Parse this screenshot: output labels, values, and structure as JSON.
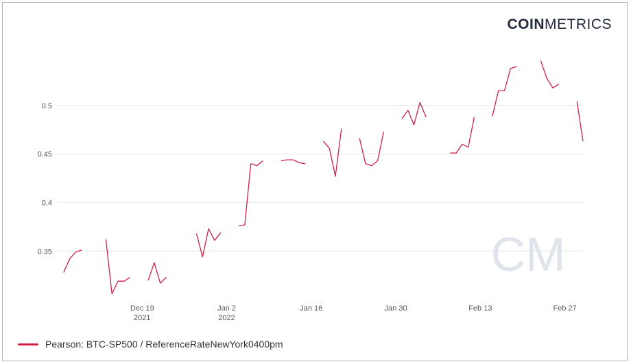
{
  "brand": {
    "logo_bold": "COIN",
    "logo_light": "METRICS",
    "watermark": "CM"
  },
  "colors": {
    "series": "#d21f45",
    "grid": "#e6e6e6",
    "watermark": "#dfe3ea"
  },
  "legend": {
    "label": "Pearson: BTC-SP500 / ReferenceRateNewYork0400pm"
  },
  "chart_data": {
    "type": "line",
    "title": "",
    "xlabel": "",
    "ylabel": "",
    "grid": true,
    "legend_position": "bottom-left",
    "ylim": [
      0.305,
      0.545
    ],
    "xlim": [
      "2021-12-05",
      "2022-03-02"
    ],
    "y_ticks": [
      0.35,
      0.4,
      0.45,
      0.5
    ],
    "x_ticks": [
      {
        "date": "2021-12-19",
        "label": "Dec 19",
        "sublabel": "2021"
      },
      {
        "date": "2022-01-02",
        "label": "Jan 2",
        "sublabel": "2022"
      },
      {
        "date": "2022-01-16",
        "label": "Jan 16",
        "sublabel": ""
      },
      {
        "date": "2022-01-30",
        "label": "Jan 30",
        "sublabel": ""
      },
      {
        "date": "2022-02-13",
        "label": "Feb 13",
        "sublabel": ""
      },
      {
        "date": "2022-02-27",
        "label": "Feb 27",
        "sublabel": ""
      }
    ],
    "series": [
      {
        "name": "Pearson: BTC-SP500 / ReferenceRateNewYork0400pm",
        "segments": [
          [
            [
              "2021-12-06",
              0.328
            ],
            [
              "2021-12-07",
              0.342
            ],
            [
              "2021-12-08",
              0.349
            ],
            [
              "2021-12-09",
              0.351
            ]
          ],
          [
            [
              "2021-12-13",
              0.362
            ],
            [
              "2021-12-14",
              0.306
            ],
            [
              "2021-12-15",
              0.319
            ],
            [
              "2021-12-16",
              0.319
            ],
            [
              "2021-12-17",
              0.323
            ]
          ],
          [
            [
              "2021-12-20",
              0.32
            ],
            [
              "2021-12-21",
              0.338
            ],
            [
              "2021-12-22",
              0.317
            ],
            [
              "2021-12-23",
              0.323
            ]
          ],
          [
            [
              "2021-12-28",
              0.368
            ],
            [
              "2021-12-29",
              0.344
            ],
            [
              "2021-12-30",
              0.373
            ],
            [
              "2021-12-31",
              0.361
            ],
            [
              "2022-01-01",
              0.369
            ]
          ],
          [
            [
              "2022-01-04",
              0.376
            ],
            [
              "2022-01-05",
              0.377
            ],
            [
              "2022-01-06",
              0.44
            ],
            [
              "2022-01-07",
              0.438
            ],
            [
              "2022-01-08",
              0.443
            ]
          ],
          [
            [
              "2022-01-11",
              0.443
            ],
            [
              "2022-01-12",
              0.444
            ],
            [
              "2022-01-13",
              0.444
            ],
            [
              "2022-01-14",
              0.441
            ],
            [
              "2022-01-15",
              0.44
            ]
          ],
          [
            [
              "2022-01-18",
              0.463
            ],
            [
              "2022-01-19",
              0.456
            ],
            [
              "2022-01-20",
              0.427
            ],
            [
              "2022-01-21",
              0.476
            ]
          ],
          [
            [
              "2022-01-24",
              0.466
            ],
            [
              "2022-01-25",
              0.44
            ],
            [
              "2022-01-26",
              0.438
            ],
            [
              "2022-01-27",
              0.443
            ],
            [
              "2022-01-28",
              0.473
            ]
          ],
          [
            [
              "2022-01-31",
              0.486
            ],
            [
              "2022-02-01",
              0.495
            ],
            [
              "2022-02-02",
              0.48
            ],
            [
              "2022-02-03",
              0.503
            ],
            [
              "2022-02-04",
              0.488
            ]
          ],
          [
            [
              "2022-02-08",
              0.451
            ],
            [
              "2022-02-09",
              0.451
            ],
            [
              "2022-02-10",
              0.46
            ],
            [
              "2022-02-11",
              0.457
            ],
            [
              "2022-02-12",
              0.488
            ]
          ],
          [
            [
              "2022-02-15",
              0.489
            ],
            [
              "2022-02-16",
              0.515
            ],
            [
              "2022-02-17",
              0.515
            ],
            [
              "2022-02-18",
              0.538
            ],
            [
              "2022-02-19",
              0.54
            ]
          ],
          [
            [
              "2022-02-23",
              0.546
            ],
            [
              "2022-02-24",
              0.528
            ],
            [
              "2022-02-25",
              0.518
            ],
            [
              "2022-02-26",
              0.522
            ]
          ],
          [
            [
              "2022-03-01",
              0.504
            ],
            [
              "2022-03-02",
              0.463
            ]
          ]
        ]
      }
    ]
  }
}
